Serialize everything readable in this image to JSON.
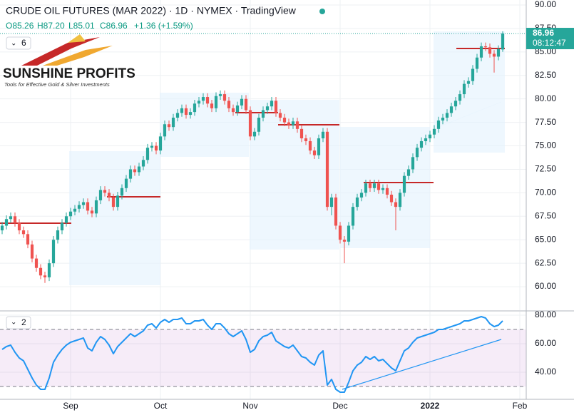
{
  "header": {
    "title": "CRUDE OIL FUTURES (MAR 2022) · 1D · NYMEX · TradingView",
    "legend_values": [
      "O85.26",
      "H87.20",
      "L85.01",
      "C86.96",
      "+1.36 (+1.59%)"
    ],
    "main_indicator_count": "6",
    "rsi_indicator_count": "2",
    "logo_name": "SUNSHINE PROFITS",
    "logo_tagline": "Tools for Effective Gold & Silver Investments"
  },
  "chart_data": [
    {
      "type": "candlestick",
      "up_color": "#26a69a",
      "down_color": "#ef5350",
      "grid": true,
      "last_price_label": "86.96",
      "countdown_label": "08:12:47",
      "xlim": [
        -0.5,
        122.5
      ],
      "ylim": [
        57.5,
        90.53
      ],
      "yticks": [
        {
          "value": 60,
          "label": "60.00"
        },
        {
          "value": 62.5,
          "label": "62.50"
        },
        {
          "value": 65,
          "label": "65.00"
        },
        {
          "value": 67.5,
          "label": "67.50"
        },
        {
          "value": 70,
          "label": "70.00"
        },
        {
          "value": 72.5,
          "label": "72.50"
        },
        {
          "value": 75,
          "label": "75.00"
        },
        {
          "value": 77.5,
          "label": "77.50"
        },
        {
          "value": 80,
          "label": "80.00"
        },
        {
          "value": 82.5,
          "label": "82.50"
        },
        {
          "value": 85,
          "label": "85.00"
        },
        {
          "value": 87.5,
          "label": "87.50"
        },
        {
          "value": 90,
          "label": "90.00"
        }
      ],
      "open": [
        66.0,
        66.5,
        67.2,
        67.5,
        66.8,
        66.0,
        65.6,
        64.5,
        63.0,
        62.0,
        61.2,
        61.0,
        62.5,
        65.0,
        66.0,
        66.8,
        67.5,
        68.0,
        68.3,
        68.7,
        69.0,
        68.1,
        67.8,
        69.2,
        70.3,
        70.0,
        69.5,
        68.5,
        69.7,
        70.5,
        71.5,
        72.5,
        72.2,
        72.8,
        73.5,
        74.8,
        75.0,
        74.5,
        76.0,
        77.3,
        77.0,
        78.0,
        78.5,
        79.0,
        78.3,
        78.6,
        79.5,
        79.8,
        80.2,
        79.5,
        79.0,
        80.3,
        80.5,
        79.8,
        79.0,
        78.6,
        79.3,
        80.0,
        78.8,
        76.0,
        76.5,
        78.0,
        78.8,
        79.2,
        79.8,
        78.5,
        78.0,
        77.5,
        77.2,
        77.6,
        76.8,
        75.8,
        75.5,
        74.5,
        74.0,
        75.8,
        76.5,
        68.5,
        69.5,
        66.5,
        65.0,
        64.8,
        66.5,
        68.5,
        69.5,
        70.0,
        71.0,
        70.5,
        71.0,
        70.3,
        70.5,
        69.8,
        69.0,
        68.5,
        70.0,
        71.8,
        72.5,
        73.8,
        74.8,
        75.5,
        75.8,
        76.2,
        76.8,
        77.7,
        78.0,
        78.5,
        79.2,
        79.8,
        80.5,
        81.6,
        81.9,
        83.2,
        84.4,
        85.6,
        85.5,
        84.8,
        84.5,
        85.26
      ],
      "high": [
        66.9,
        67.6,
        67.9,
        67.9,
        67.2,
        66.4,
        66.0,
        64.9,
        63.4,
        62.4,
        61.6,
        62.9,
        65.4,
        66.4,
        67.2,
        67.9,
        68.4,
        68.7,
        69.1,
        69.4,
        69.4,
        68.5,
        69.6,
        70.7,
        70.7,
        70.4,
        69.9,
        70.1,
        70.9,
        71.9,
        72.9,
        72.9,
        73.2,
        73.9,
        75.2,
        75.4,
        75.4,
        76.4,
        77.7,
        77.7,
        78.4,
        78.9,
        79.4,
        79.4,
        79.0,
        79.9,
        80.2,
        80.6,
        80.6,
        79.9,
        80.7,
        80.9,
        80.9,
        80.2,
        79.4,
        79.7,
        80.4,
        80.4,
        79.2,
        76.9,
        78.4,
        79.2,
        79.6,
        80.2,
        80.2,
        78.9,
        78.4,
        77.9,
        78.0,
        78.0,
        77.2,
        76.2,
        75.9,
        74.9,
        76.2,
        76.9,
        76.9,
        69.9,
        69.9,
        66.9,
        65.4,
        66.9,
        68.9,
        69.9,
        70.4,
        71.4,
        71.4,
        71.4,
        71.4,
        70.9,
        70.9,
        70.2,
        69.4,
        70.4,
        72.2,
        72.9,
        74.2,
        75.2,
        75.9,
        76.2,
        76.6,
        77.2,
        78.1,
        78.4,
        78.9,
        79.6,
        80.2,
        80.9,
        82.0,
        82.3,
        83.6,
        84.8,
        86.0,
        86.0,
        85.9,
        85.2,
        85.7,
        87.2
      ],
      "low": [
        65.6,
        66.1,
        66.8,
        66.4,
        65.6,
        65.2,
        64.1,
        62.6,
        61.6,
        60.8,
        60.4,
        60.6,
        62.1,
        64.6,
        65.6,
        66.4,
        67.1,
        67.6,
        67.9,
        68.3,
        67.7,
        67.4,
        67.4,
        68.8,
        69.6,
        69.1,
        68.1,
        68.1,
        69.3,
        70.1,
        71.1,
        71.8,
        71.8,
        72.4,
        73.1,
        74.4,
        74.1,
        74.1,
        75.6,
        76.6,
        76.6,
        77.6,
        78.1,
        77.9,
        77.9,
        78.2,
        79.1,
        79.4,
        79.1,
        78.6,
        78.6,
        79.9,
        79.4,
        78.6,
        78.2,
        78.2,
        78.9,
        78.4,
        75.6,
        75.6,
        76.1,
        77.6,
        78.4,
        78.8,
        78.1,
        77.6,
        77.1,
        76.8,
        76.8,
        76.4,
        75.4,
        75.1,
        74.1,
        73.6,
        73.6,
        75.4,
        68.1,
        67.6,
        66.1,
        64.6,
        62.5,
        64.4,
        66.1,
        68.1,
        69.1,
        69.6,
        70.1,
        70.1,
        69.9,
        69.9,
        69.4,
        68.6,
        66.0,
        68.1,
        69.6,
        71.4,
        72.1,
        73.4,
        74.4,
        75.1,
        75.4,
        75.8,
        76.4,
        77.3,
        77.6,
        78.1,
        78.8,
        79.4,
        80.1,
        81.2,
        81.5,
        82.8,
        84.0,
        85.1,
        84.4,
        82.8,
        84.1,
        85.01
      ],
      "close": [
        66.5,
        67.2,
        67.5,
        66.8,
        66.0,
        65.6,
        64.5,
        63.0,
        62.0,
        61.2,
        61.0,
        62.5,
        65.0,
        66.0,
        66.8,
        67.5,
        68.0,
        68.3,
        68.7,
        69.0,
        68.1,
        67.8,
        69.2,
        70.3,
        70.0,
        69.5,
        68.5,
        69.7,
        70.5,
        71.5,
        72.5,
        72.2,
        72.8,
        73.5,
        74.8,
        75.0,
        74.5,
        76.0,
        77.3,
        77.0,
        78.0,
        78.5,
        79.0,
        78.3,
        78.6,
        79.5,
        79.8,
        80.2,
        79.5,
        79.0,
        80.3,
        80.5,
        79.8,
        79.0,
        78.6,
        79.3,
        80.0,
        78.8,
        76.0,
        76.5,
        78.0,
        78.8,
        79.2,
        79.8,
        78.5,
        78.0,
        77.5,
        77.2,
        77.6,
        76.8,
        75.8,
        75.5,
        74.5,
        74.0,
        75.8,
        76.5,
        68.5,
        69.5,
        66.5,
        65.0,
        64.8,
        66.5,
        68.5,
        69.5,
        70.0,
        71.0,
        70.5,
        71.0,
        70.3,
        70.5,
        69.8,
        69.0,
        68.5,
        70.0,
        71.8,
        72.5,
        73.8,
        74.8,
        75.5,
        75.8,
        76.2,
        76.8,
        77.7,
        78.0,
        78.5,
        79.2,
        79.8,
        80.5,
        81.6,
        81.9,
        83.2,
        84.4,
        85.6,
        85.5,
        84.8,
        84.5,
        85.3,
        86.96
      ]
    },
    {
      "type": "line",
      "color": "#2196f3",
      "grid": true,
      "bands": [
        70,
        30
      ],
      "xlim": [
        -0.5,
        122.5
      ],
      "ylim": [
        21,
        82.5
      ],
      "yticks": [
        {
          "value": 40,
          "label": "40.00"
        },
        {
          "value": 60,
          "label": "60.00"
        },
        {
          "value": 80,
          "label": "80.00"
        }
      ],
      "xticks": [
        {
          "value": 16,
          "label": "Sep"
        },
        {
          "value": 37,
          "label": "Oct"
        },
        {
          "value": 58,
          "label": "Nov"
        },
        {
          "value": 79,
          "label": "Dec"
        },
        {
          "value": 100,
          "label": "2022"
        },
        {
          "value": 121,
          "label": "Feb"
        }
      ],
      "values": [
        56,
        58,
        59,
        54,
        50,
        48,
        42,
        36,
        31,
        28,
        28,
        36,
        47,
        52,
        56,
        59,
        61,
        62,
        63,
        64,
        57,
        55,
        61,
        65,
        63,
        59,
        53,
        58,
        61,
        64,
        67,
        65,
        67,
        69,
        73,
        74,
        71,
        75,
        77,
        75,
        77,
        77,
        78,
        74,
        74,
        76,
        76,
        77,
        73,
        70,
        74,
        74,
        71,
        67,
        65,
        67,
        69,
        63,
        54,
        56,
        62,
        65,
        66,
        68,
        62,
        60,
        58,
        57,
        59,
        55,
        51,
        50,
        47,
        45,
        52,
        55,
        31,
        35,
        28,
        26,
        26,
        33,
        41,
        45,
        47,
        51,
        49,
        51,
        48,
        49,
        46,
        43,
        41,
        48,
        55,
        57,
        61,
        64,
        65,
        66,
        67,
        68,
        70,
        70,
        71,
        72,
        73,
        74,
        76,
        76,
        77,
        78,
        79,
        78,
        74,
        72,
        73,
        76
      ]
    }
  ]
}
